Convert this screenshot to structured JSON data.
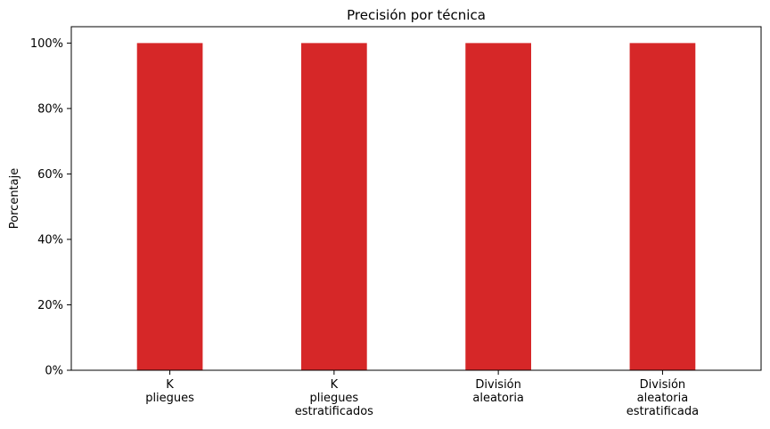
{
  "chart_data": {
    "type": "bar",
    "title": "Precisión por técnica",
    "xlabel": "",
    "ylabel": "Porcentaje",
    "categories": [
      [
        "K",
        "pliegues"
      ],
      [
        "K",
        "pliegues",
        "estratificados"
      ],
      [
        "División",
        "aleatoria"
      ],
      [
        "División",
        "aleatoria",
        "estratificada"
      ]
    ],
    "values": [
      100,
      100,
      100,
      100
    ],
    "ylim": [
      0,
      105
    ],
    "yticks": [
      0,
      20,
      40,
      60,
      80,
      100
    ],
    "ytick_labels": [
      "0%",
      "20%",
      "40%",
      "60%",
      "80%",
      "100%"
    ],
    "bar_color": "#d62728",
    "grid": false
  }
}
